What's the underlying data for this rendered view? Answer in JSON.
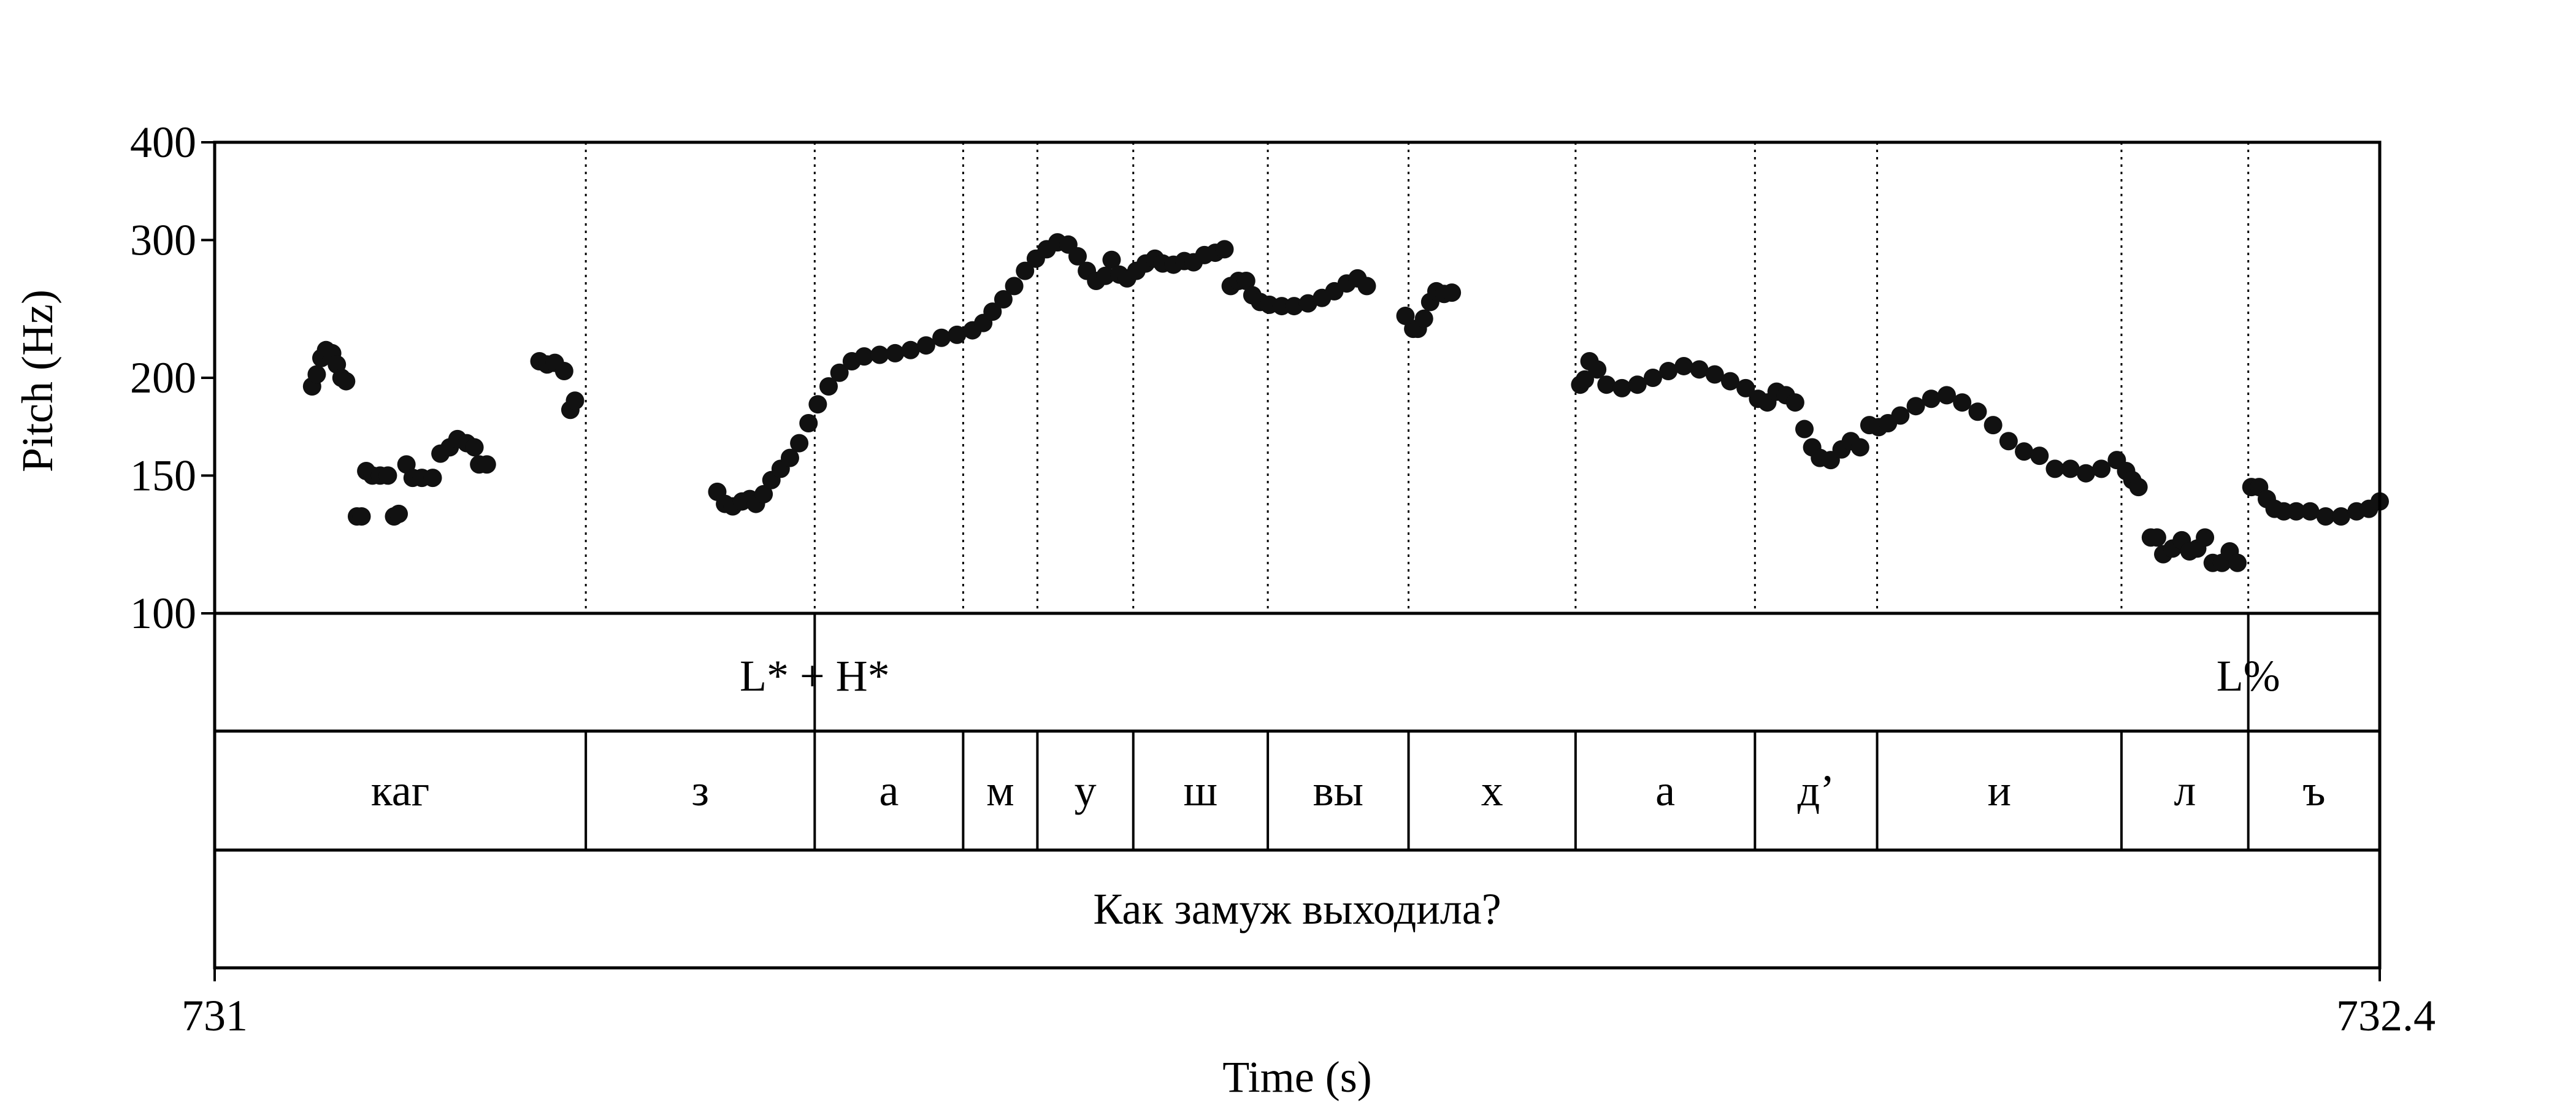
{
  "chart_data": {
    "type": "scatter",
    "ylabel": "Pitch (Hz)",
    "xlabel": "Time (s)",
    "xlim": [
      731,
      732.4
    ],
    "ylim": [
      100,
      400
    ],
    "yscale": "log",
    "y_ticks": [
      100,
      150,
      200,
      300,
      400
    ],
    "x_tick_labels": [
      "731",
      "732.4"
    ],
    "grid": false,
    "legend": "none",
    "segment_boundaries": [
      731.24,
      731.388,
      731.484,
      731.532,
      731.594,
      731.681,
      731.772,
      731.88,
      731.996,
      732.075,
      732.233,
      732.315
    ],
    "tones": [
      {
        "label": "L* + H*",
        "time": 731.388
      },
      {
        "label": "L%",
        "time": 732.315
      }
    ],
    "segments": [
      {
        "label": "каг",
        "start": 731.0,
        "end": 731.24
      },
      {
        "label": "з",
        "start": 731.24,
        "end": 731.388
      },
      {
        "label": "а",
        "start": 731.388,
        "end": 731.484
      },
      {
        "label": "м",
        "start": 731.484,
        "end": 731.532
      },
      {
        "label": "у",
        "start": 731.532,
        "end": 731.594
      },
      {
        "label": "ш",
        "start": 731.594,
        "end": 731.681
      },
      {
        "label": "вы",
        "start": 731.681,
        "end": 731.772
      },
      {
        "label": "х",
        "start": 731.772,
        "end": 731.88
      },
      {
        "label": "а",
        "start": 731.88,
        "end": 731.996
      },
      {
        "label": "д’",
        "start": 731.996,
        "end": 732.075
      },
      {
        "label": "и",
        "start": 732.075,
        "end": 732.233
      },
      {
        "label": "л",
        "start": 732.233,
        "end": 732.315
      },
      {
        "label": "ъ",
        "start": 732.315,
        "end": 732.4
      }
    ],
    "sentence": "Как замуж выходила?",
    "series": [
      {
        "points": [
          [
            731.063,
            195
          ],
          [
            731.066,
            202
          ],
          [
            731.069,
            212
          ],
          [
            731.072,
            217
          ],
          [
            731.076,
            215
          ],
          [
            731.079,
            208
          ],
          [
            731.082,
            200
          ],
          [
            731.085,
            198
          ]
        ]
      },
      {
        "points": [
          [
            731.092,
            133
          ],
          [
            731.095,
            133
          ],
          [
            731.098,
            152
          ],
          [
            731.102,
            150
          ],
          [
            731.107,
            150
          ],
          [
            731.112,
            150
          ],
          [
            731.116,
            133
          ],
          [
            731.119,
            134
          ]
        ]
      },
      {
        "points": [
          [
            731.124,
            155
          ],
          [
            731.128,
            149
          ],
          [
            731.134,
            149
          ],
          [
            731.141,
            149
          ],
          [
            731.146,
            160
          ],
          [
            731.152,
            163
          ],
          [
            731.157,
            167
          ],
          [
            731.163,
            165
          ],
          [
            731.168,
            163
          ],
          [
            731.171,
            155
          ],
          [
            731.176,
            155
          ]
        ]
      },
      {
        "points": [
          [
            731.21,
            210
          ],
          [
            731.215,
            208
          ],
          [
            731.22,
            209
          ],
          [
            731.226,
            204
          ],
          [
            731.23,
            182
          ],
          [
            731.233,
            187
          ]
        ]
      },
      {
        "points": [
          [
            731.325,
            143
          ],
          [
            731.33,
            138
          ],
          [
            731.335,
            137
          ],
          [
            731.341,
            139
          ],
          [
            731.346,
            140
          ],
          [
            731.35,
            138
          ],
          [
            731.355,
            142
          ],
          [
            731.36,
            148
          ],
          [
            731.366,
            153
          ],
          [
            731.372,
            158
          ],
          [
            731.378,
            165
          ],
          [
            731.384,
            175
          ],
          [
            731.39,
            185
          ],
          [
            731.397,
            195
          ],
          [
            731.404,
            203
          ],
          [
            731.412,
            210
          ],
          [
            731.42,
            213
          ],
          [
            731.43,
            214
          ],
          [
            731.44,
            215
          ],
          [
            731.45,
            217
          ],
          [
            731.46,
            220
          ],
          [
            731.47,
            225
          ],
          [
            731.48,
            227
          ],
          [
            731.49,
            230
          ],
          [
            731.497,
            235
          ],
          [
            731.503,
            243
          ],
          [
            731.51,
            252
          ],
          [
            731.517,
            262
          ],
          [
            731.524,
            274
          ],
          [
            731.531,
            284
          ],
          [
            731.538,
            292
          ],
          [
            731.545,
            298
          ],
          [
            731.552,
            296
          ],
          [
            731.558,
            286
          ],
          [
            731.564,
            274
          ],
          [
            731.57,
            266
          ],
          [
            731.576,
            270
          ],
          [
            731.58,
            283
          ],
          [
            731.585,
            271
          ],
          [
            731.59,
            268
          ],
          [
            731.596,
            274
          ],
          [
            731.602,
            280
          ],
          [
            731.608,
            284
          ],
          [
            731.613,
            280
          ],
          [
            731.62,
            279
          ],
          [
            731.627,
            282
          ],
          [
            731.633,
            281
          ],
          [
            731.64,
            287
          ],
          [
            731.647,
            289
          ],
          [
            731.653,
            292
          ]
        ]
      },
      {
        "points": [
          [
            731.657,
            262
          ],
          [
            731.662,
            266
          ],
          [
            731.667,
            266
          ],
          [
            731.671,
            255
          ],
          [
            731.676,
            250
          ],
          [
            731.682,
            248
          ],
          [
            731.69,
            247
          ],
          [
            731.698,
            247
          ],
          [
            731.707,
            249
          ],
          [
            731.716,
            253
          ],
          [
            731.724,
            258
          ],
          [
            731.732,
            264
          ],
          [
            731.739,
            268
          ],
          [
            731.745,
            262
          ]
        ]
      },
      {
        "points": [
          [
            731.77,
            240
          ],
          [
            731.775,
            231
          ],
          [
            731.778,
            231
          ],
          [
            731.782,
            238
          ],
          [
            731.786,
            250
          ],
          [
            731.79,
            258
          ],
          [
            731.795,
            256
          ],
          [
            731.8,
            257
          ]
        ]
      },
      {
        "points": [
          [
            731.883,
            196
          ],
          [
            731.886,
            199
          ],
          [
            731.889,
            210
          ],
          [
            731.894,
            205
          ]
        ]
      },
      {
        "points": [
          [
            731.9,
            196
          ],
          [
            731.91,
            194
          ],
          [
            731.92,
            196
          ],
          [
            731.93,
            200
          ],
          [
            731.94,
            204
          ],
          [
            731.95,
            207
          ],
          [
            731.96,
            205
          ],
          [
            731.97,
            202
          ],
          [
            731.98,
            198
          ],
          [
            731.99,
            194
          ],
          [
            731.998,
            188
          ],
          [
            732.004,
            186
          ],
          [
            732.01,
            192
          ],
          [
            732.016,
            190
          ],
          [
            732.022,
            186
          ],
          [
            732.028,
            172
          ],
          [
            732.033,
            163
          ],
          [
            732.038,
            158
          ],
          [
            732.045,
            157
          ],
          [
            732.052,
            162
          ],
          [
            732.058,
            166
          ],
          [
            732.064,
            163
          ],
          [
            732.07,
            174
          ],
          [
            732.076,
            173
          ],
          [
            732.082,
            175
          ],
          [
            732.09,
            179
          ],
          [
            732.1,
            184
          ],
          [
            732.11,
            188
          ],
          [
            732.12,
            190
          ],
          [
            732.13,
            186
          ],
          [
            732.14,
            181
          ],
          [
            732.15,
            174
          ],
          [
            732.16,
            166
          ],
          [
            732.17,
            161
          ],
          [
            732.18,
            159
          ],
          [
            732.19,
            153
          ],
          [
            732.2,
            153
          ],
          [
            732.21,
            151
          ],
          [
            732.22,
            153
          ],
          [
            732.23,
            157
          ],
          [
            732.236,
            152
          ],
          [
            732.24,
            148
          ],
          [
            732.244,
            145
          ]
        ]
      },
      {
        "points": [
          [
            732.252,
            125
          ],
          [
            732.256,
            125
          ],
          [
            732.26,
            119
          ],
          [
            732.266,
            121
          ],
          [
            732.272,
            124
          ],
          [
            732.277,
            120
          ],
          [
            732.282,
            121
          ],
          [
            732.287,
            125
          ],
          [
            732.292,
            116
          ],
          [
            732.298,
            116
          ],
          [
            732.303,
            120
          ],
          [
            732.308,
            116
          ]
        ]
      },
      {
        "points": [
          [
            732.317,
            145
          ],
          [
            732.322,
            145
          ],
          [
            732.327,
            140
          ],
          [
            732.332,
            136
          ],
          [
            732.338,
            135
          ],
          [
            732.346,
            135
          ],
          [
            732.355,
            135
          ],
          [
            732.365,
            133
          ],
          [
            732.375,
            133
          ],
          [
            732.385,
            135
          ],
          [
            732.393,
            136
          ],
          [
            732.4,
            139
          ]
        ]
      }
    ]
  }
}
